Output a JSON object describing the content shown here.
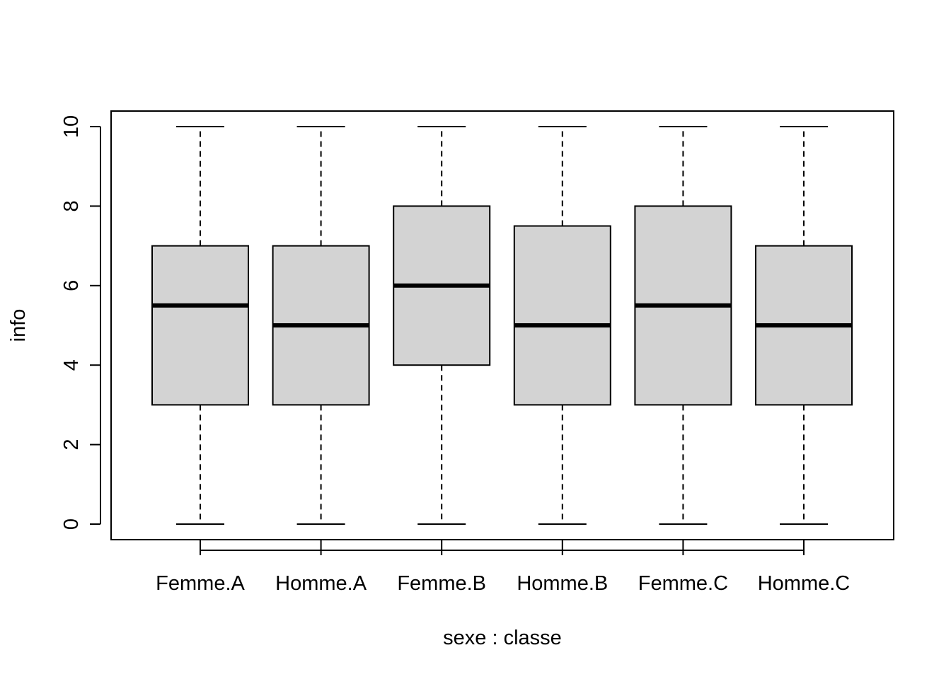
{
  "chart_data": {
    "type": "boxplot",
    "title": "",
    "xlabel": "sexe : classe",
    "ylabel": "info",
    "ylim": [
      0,
      10
    ],
    "yticks": [
      0,
      2,
      4,
      6,
      8,
      10
    ],
    "grid": false,
    "legend": "none",
    "box_fill": "#d3d3d3",
    "categories": [
      "Femme.A",
      "Homme.A",
      "Femme.B",
      "Homme.B",
      "Femme.C",
      "Homme.C"
    ],
    "boxes": [
      {
        "label": "Femme.A",
        "min": 0,
        "q1": 3,
        "median": 5.5,
        "q3": 7,
        "max": 10
      },
      {
        "label": "Homme.A",
        "min": 0,
        "q1": 3,
        "median": 5,
        "q3": 7,
        "max": 10
      },
      {
        "label": "Femme.B",
        "min": 0,
        "q1": 4,
        "median": 6,
        "q3": 8,
        "max": 10
      },
      {
        "label": "Homme.B",
        "min": 0,
        "q1": 3,
        "median": 5,
        "q3": 7.5,
        "max": 10
      },
      {
        "label": "Femme.C",
        "min": 0,
        "q1": 3,
        "median": 5.5,
        "q3": 8,
        "max": 10
      },
      {
        "label": "Homme.C",
        "min": 0,
        "q1": 3,
        "median": 5,
        "q3": 7,
        "max": 10
      }
    ]
  }
}
